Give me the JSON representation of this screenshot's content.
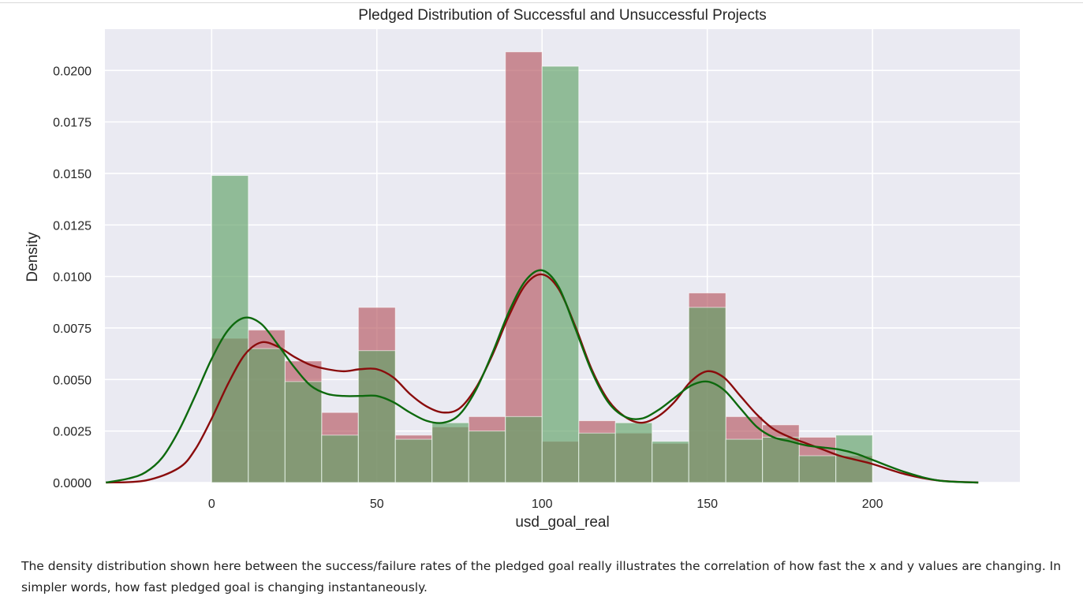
{
  "chart_data": {
    "type": "bar",
    "title": "Pledged Distribution of Successful and Unsuccessful Projects",
    "xlabel": "usd_goal_real",
    "ylabel": "Density",
    "xlim": [
      -32.3,
      244.6
    ],
    "ylim": [
      0,
      0.022
    ],
    "xticks": [
      0,
      50,
      100,
      150,
      200
    ],
    "yticks": [
      0.0,
      0.0025,
      0.005,
      0.0075,
      0.01,
      0.0125,
      0.015,
      0.0175,
      0.02
    ],
    "ytick_labels": [
      "0.0000",
      "0.0025",
      "0.0050",
      "0.0075",
      "0.0100",
      "0.0125",
      "0.0150",
      "0.0175",
      "0.0200"
    ],
    "grid": true,
    "bin_edges": [
      0,
      11.1,
      22.2,
      33.3,
      44.4,
      55.6,
      66.7,
      77.8,
      88.9,
      100,
      111.1,
      122.2,
      133.3,
      144.4,
      155.6,
      166.7,
      177.8,
      188.9,
      200
    ],
    "series": [
      {
        "color": "#b5565f",
        "values": [
          0.007,
          0.0074,
          0.0059,
          0.0034,
          0.0085,
          0.0023,
          0.0027,
          0.0032,
          0.0209,
          0.002,
          0.003,
          0.0024,
          0.0019,
          0.0092,
          0.0032,
          0.0028,
          0.0022,
          0.0013
        ],
        "kde_x": [
          -32,
          -20,
          -10,
          -5,
          0,
          5,
          10,
          15,
          20,
          25,
          30,
          35,
          40,
          45,
          50,
          55,
          60,
          65,
          70,
          75,
          80,
          85,
          90,
          95,
          100,
          105,
          110,
          115,
          120,
          125,
          130,
          135,
          140,
          145,
          150,
          155,
          160,
          165,
          170,
          175,
          180,
          185,
          190,
          195,
          200,
          210,
          220,
          232
        ],
        "kde_y": [
          0,
          0.0001,
          0.0007,
          0.0016,
          0.0031,
          0.0048,
          0.0062,
          0.0068,
          0.0066,
          0.0061,
          0.0057,
          0.0055,
          0.0054,
          0.0055,
          0.0055,
          0.0051,
          0.0043,
          0.0037,
          0.0034,
          0.0036,
          0.0046,
          0.0062,
          0.0081,
          0.0096,
          0.0101,
          0.0094,
          0.0076,
          0.0055,
          0.004,
          0.0032,
          0.0029,
          0.0032,
          0.0039,
          0.0049,
          0.0054,
          0.0051,
          0.0042,
          0.0033,
          0.0026,
          0.0022,
          0.0019,
          0.0016,
          0.0013,
          0.0011,
          0.0009,
          0.0004,
          0.0001,
          0
        ]
      },
      {
        "color": "#5fa266",
        "values": [
          0.0149,
          0.0065,
          0.0049,
          0.0023,
          0.0064,
          0.0021,
          0.0029,
          0.0025,
          0.0032,
          0.0202,
          0.0024,
          0.0029,
          0.002,
          0.0085,
          0.0021,
          0.0022,
          0.0013,
          0.0023
        ],
        "kde_x": [
          -32,
          -25,
          -20,
          -15,
          -10,
          -5,
          0,
          5,
          10,
          15,
          20,
          25,
          30,
          35,
          40,
          45,
          50,
          55,
          60,
          65,
          70,
          75,
          80,
          85,
          90,
          95,
          100,
          105,
          110,
          115,
          120,
          125,
          130,
          135,
          140,
          145,
          150,
          155,
          160,
          165,
          170,
          175,
          180,
          185,
          190,
          195,
          200,
          210,
          220,
          232
        ],
        "kde_y": [
          0,
          0.0002,
          0.0005,
          0.0012,
          0.0025,
          0.0042,
          0.006,
          0.0074,
          0.008,
          0.0077,
          0.0067,
          0.0056,
          0.0047,
          0.0043,
          0.0042,
          0.0042,
          0.0042,
          0.0039,
          0.0034,
          0.003,
          0.0029,
          0.0033,
          0.0045,
          0.0063,
          0.0083,
          0.0098,
          0.0103,
          0.0095,
          0.0075,
          0.0054,
          0.0039,
          0.0032,
          0.0031,
          0.0035,
          0.0041,
          0.0047,
          0.0049,
          0.0045,
          0.0036,
          0.0027,
          0.0022,
          0.002,
          0.0018,
          0.0017,
          0.0016,
          0.0014,
          0.0011,
          0.0005,
          0.0001,
          0
        ]
      }
    ],
    "kde_colors": [
      "#8a0c0c",
      "#0d690d"
    ],
    "plot_background": "#eaeaf2"
  },
  "caption": "The density distribution shown here between the success/failure rates of the pledged goal really illustrates the correlation of how fast the x and y values are changing. In simpler words, how fast pledged goal is changing instantaneously."
}
